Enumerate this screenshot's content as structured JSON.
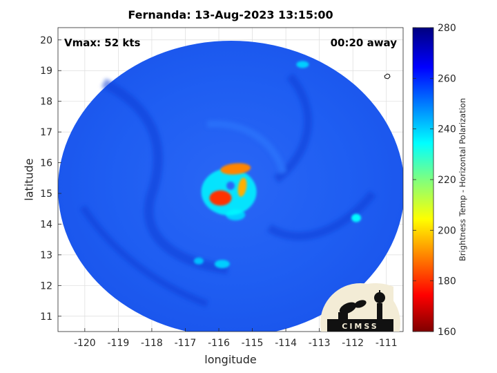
{
  "title": "Fernanda: 13-Aug-2023 13:15:00",
  "annotations": {
    "vmax": "Vmax: 52 kts",
    "timing": "00:20 away"
  },
  "axes": {
    "xlabel": "longitude",
    "ylabel": "latitude",
    "xlim": [
      -120.8,
      -110.5
    ],
    "ylim": [
      10.5,
      20.4
    ],
    "xticks": [
      -120,
      -119,
      -118,
      -117,
      -116,
      -115,
      -114,
      -113,
      -112,
      -111
    ],
    "yticks": [
      11,
      12,
      13,
      14,
      15,
      16,
      17,
      18,
      19,
      20
    ],
    "grid": true
  },
  "colorbar": {
    "label": "Brightness Temp - Horizontal Polarization",
    "range": [
      160,
      280
    ],
    "ticks": [
      160,
      180,
      200,
      220,
      240,
      260,
      280
    ],
    "colormap": "jet"
  },
  "swath": {
    "background_temp": 262,
    "center_lon": -115.8,
    "center_lat": 15.0,
    "features": [
      {
        "lon": -115.5,
        "lat": 15.8,
        "temp": 190,
        "label": "northern eyewall band"
      },
      {
        "lon": -115.95,
        "lat": 14.85,
        "temp": 180,
        "label": "southwest convective core"
      },
      {
        "lon": -115.3,
        "lat": 15.2,
        "temp": 195,
        "label": "eastern hook band"
      },
      {
        "lon": -115.7,
        "lat": 15.05,
        "temp": 235,
        "label": "inner core ring"
      },
      {
        "lon": -115.5,
        "lat": 14.3,
        "temp": 240,
        "label": "southern core"
      },
      {
        "lon": -111.9,
        "lat": 14.2,
        "temp": 235,
        "label": "isolated cell east"
      },
      {
        "lon": -115.9,
        "lat": 12.7,
        "temp": 240,
        "label": "southern cell"
      },
      {
        "lon": -116.6,
        "lat": 12.8,
        "temp": 242,
        "label": "southern cell west"
      },
      {
        "lon": -113.5,
        "lat": 19.2,
        "temp": 240,
        "label": "northern cell"
      }
    ]
  },
  "logo": {
    "text": "CIMSS"
  },
  "colors": {
    "swath_blue": "#1f5bf2",
    "swath_dark": "#0f3fd9",
    "jet_low": "#7f0000",
    "jet_high": "#00007f"
  }
}
